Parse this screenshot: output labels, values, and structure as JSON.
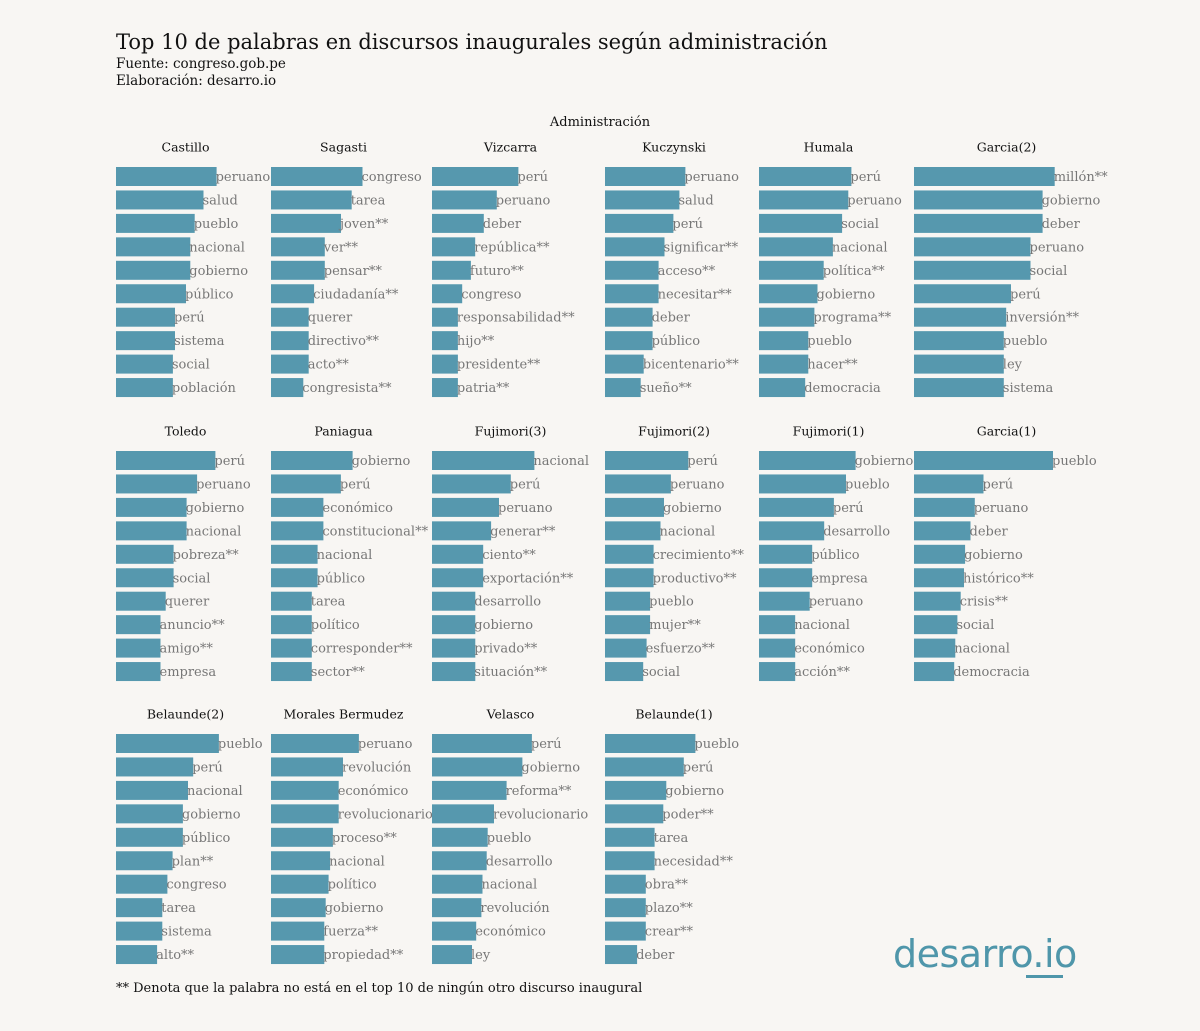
{
  "title": "Top 10 de palabras en discursos inaugurales según administración",
  "source": "Fuente: congreso.gob.pe",
  "credit": "Elaboración: desarro.io",
  "strip_title": "Administración",
  "footnote": "** Denota que la palabra no está en el top 10 de ningún otro discurso inaugural",
  "logo": "desarro.io",
  "colors": {
    "bar": "#5698ae",
    "label": "#777777",
    "panel_title": "#111111",
    "background": "#f8f6f3"
  },
  "chart_data": {
    "type": "bar",
    "orientation": "horizontal",
    "facet_by": "Administración",
    "x_scale": "free",
    "panels": [
      {
        "name": "Castillo",
        "words": [
          "peruano",
          "salud",
          "pueblo",
          "nacional",
          "gobierno",
          "público",
          "perú",
          "sistema",
          "social",
          "población"
        ],
        "values": [
          46,
          40,
          36,
          34,
          34,
          32,
          27,
          27,
          26,
          26
        ]
      },
      {
        "name": "Sagasti",
        "words": [
          "congreso",
          "tarea",
          "joven**",
          "ver**",
          "pensar**",
          "ciudadanía**",
          "querer",
          "directivo**",
          "acto**",
          "congresista**"
        ],
        "values": [
          17,
          15,
          13,
          10,
          10,
          8,
          7,
          7,
          7,
          6
        ]
      },
      {
        "name": "Vizcarra",
        "words": [
          "perú",
          "peruano",
          "deber",
          "república**",
          "futuro**",
          "congreso",
          "responsabilidad**",
          "hijo**",
          "presidente**",
          "patria**"
        ],
        "values": [
          20,
          15,
          12,
          10,
          9,
          7,
          6,
          6,
          6,
          6
        ]
      },
      {
        "name": "Kuczynski",
        "words": [
          "peruano",
          "salud",
          "perú",
          "significar**",
          "acceso**",
          "necesitar**",
          "deber",
          "público",
          "bicentenario**",
          "sueño**"
        ],
        "values": [
          27,
          25,
          23,
          20,
          18,
          18,
          16,
          16,
          13,
          12
        ]
      },
      {
        "name": "Humala",
        "words": [
          "perú",
          "peruano",
          "social",
          "nacional",
          "política**",
          "gobierno",
          "programa**",
          "pueblo",
          "hacer**",
          "democracia"
        ],
        "values": [
          30,
          29,
          27,
          24,
          21,
          19,
          18,
          16,
          16,
          15
        ]
      },
      {
        "name": "Garcia(2)",
        "words": [
          "millón**",
          "gobierno",
          "deber",
          "peruano",
          "social",
          "perú",
          "inversión**",
          "pueblo",
          "ley",
          "sistema"
        ],
        "values": [
          58,
          53,
          53,
          48,
          48,
          40,
          38,
          37,
          37,
          37
        ]
      },
      {
        "name": "Toledo",
        "words": [
          "perú",
          "peruano",
          "gobierno",
          "nacional",
          "pobreza**",
          "social",
          "querer",
          "anuncio**",
          "amigo**",
          "empresa"
        ],
        "values": [
          38,
          31,
          27,
          27,
          22,
          22,
          19,
          17,
          17,
          17
        ]
      },
      {
        "name": "Paniagua",
        "words": [
          "gobierno",
          "perú",
          "económico",
          "constitucional**",
          "nacional",
          "público",
          "tarea",
          "político",
          "corresponder**",
          "sector**"
        ],
        "values": [
          14,
          12,
          9,
          9,
          8,
          8,
          7,
          7,
          7,
          7
        ]
      },
      {
        "name": "Fujimori(3)",
        "words": [
          "nacional",
          "perú",
          "peruano",
          "generar**",
          "ciento**",
          "exportación**",
          "desarrollo",
          "gobierno",
          "privado**",
          "situación**"
        ],
        "values": [
          26,
          20,
          17,
          15,
          13,
          13,
          11,
          11,
          11,
          11
        ]
      },
      {
        "name": "Fujimori(2)",
        "words": [
          "perú",
          "peruano",
          "gobierno",
          "nacional",
          "crecimiento**",
          "productivo**",
          "pueblo",
          "mujer**",
          "esfuerzo**",
          "social"
        ],
        "values": [
          24,
          19,
          17,
          16,
          14,
          14,
          13,
          13,
          12,
          11
        ]
      },
      {
        "name": "Fujimori(1)",
        "words": [
          "gobierno",
          "pueblo",
          "perú",
          "desarrollo",
          "público",
          "empresa",
          "peruano",
          "nacional",
          "económico",
          "acción**"
        ],
        "values": [
          40,
          36,
          31,
          27,
          22,
          22,
          21,
          15,
          15,
          15
        ]
      },
      {
        "name": "Garcia(1)",
        "words": [
          "pueblo",
          "perú",
          "peruano",
          "deber",
          "gobierno",
          "histórico**",
          "crisis**",
          "social",
          "nacional",
          "democracia"
        ],
        "values": [
          128,
          64,
          56,
          52,
          47,
          46,
          43,
          40,
          38,
          37
        ]
      },
      {
        "name": "Belaunde(2)",
        "words": [
          "pueblo",
          "perú",
          "nacional",
          "gobierno",
          "público",
          "plan**",
          "congreso",
          "tarea",
          "sistema",
          "alto**"
        ],
        "values": [
          20,
          15,
          14,
          13,
          13,
          11,
          10,
          9,
          9,
          8
        ]
      },
      {
        "name": "Morales Bermudez",
        "words": [
          "peruano",
          "revolución",
          "económico",
          "revolucionario",
          "proceso**",
          "nacional",
          "político",
          "gobierno",
          "fuerza**",
          "propiedad**"
        ],
        "values": [
          61,
          50,
          47,
          47,
          43,
          41,
          40,
          38,
          37,
          37
        ]
      },
      {
        "name": "Velasco",
        "words": [
          "perú",
          "gobierno",
          "reforma**",
          "revolucionario",
          "pueblo",
          "desarrollo",
          "nacional",
          "revolución",
          "económico",
          "ley"
        ],
        "values": [
          95,
          86,
          71,
          59,
          53,
          52,
          48,
          47,
          42,
          38
        ]
      },
      {
        "name": "Belaunde(1)",
        "words": [
          "pueblo",
          "perú",
          "gobierno",
          "poder**",
          "tarea",
          "necesidad**",
          "obra**",
          "plazo**",
          "crear**",
          "deber"
        ],
        "values": [
          31,
          27,
          21,
          20,
          17,
          17,
          14,
          14,
          14,
          11
        ]
      }
    ]
  }
}
